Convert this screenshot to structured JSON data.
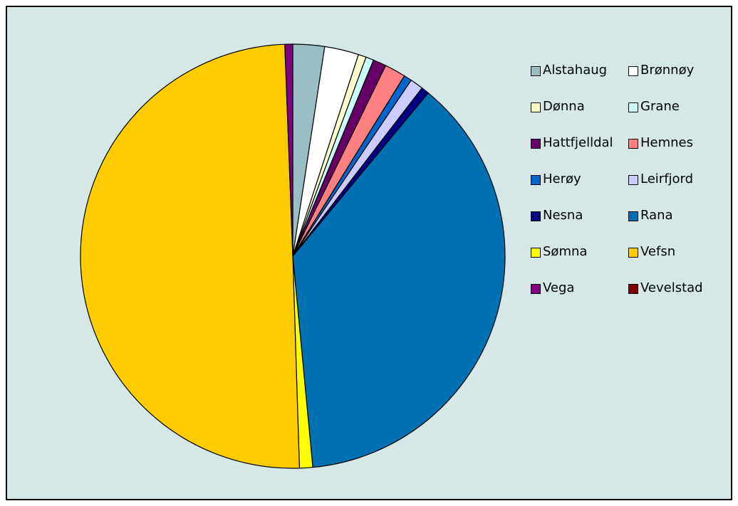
{
  "chart_data": {
    "type": "pie",
    "title": "",
    "legend_position": "right",
    "start_angle_deg": 0,
    "direction": "clockwise",
    "slices": [
      {
        "label": "Alstahaug",
        "value": 2.4,
        "color": "#99bfc4"
      },
      {
        "label": "Brønnøy",
        "value": 2.6,
        "color": "#ffffff"
      },
      {
        "label": "Dønna",
        "value": 0.6,
        "color": "#ffffcc"
      },
      {
        "label": "Grane",
        "value": 0.6,
        "color": "#ccffff"
      },
      {
        "label": "Hattfjelldal",
        "value": 1.0,
        "color": "#660066"
      },
      {
        "label": "Hemnes",
        "value": 1.6,
        "color": "#ff8080"
      },
      {
        "label": "Herøy",
        "value": 0.6,
        "color": "#0066cc"
      },
      {
        "label": "Leirfjord",
        "value": 1.0,
        "color": "#ccccff"
      },
      {
        "label": "Nesna",
        "value": 0.6,
        "color": "#000080"
      },
      {
        "label": "Rana",
        "value": 37.4,
        "color": "#0070b0"
      },
      {
        "label": "Sømna",
        "value": 1.0,
        "color": "#ffff00"
      },
      {
        "label": "Vefsn",
        "value": 49.8,
        "color": "#ffcc00"
      },
      {
        "label": "Vega",
        "value": 0.6,
        "color": "#800080"
      },
      {
        "label": "Vevelstad",
        "value": 0.0,
        "color": "#800000"
      }
    ]
  }
}
